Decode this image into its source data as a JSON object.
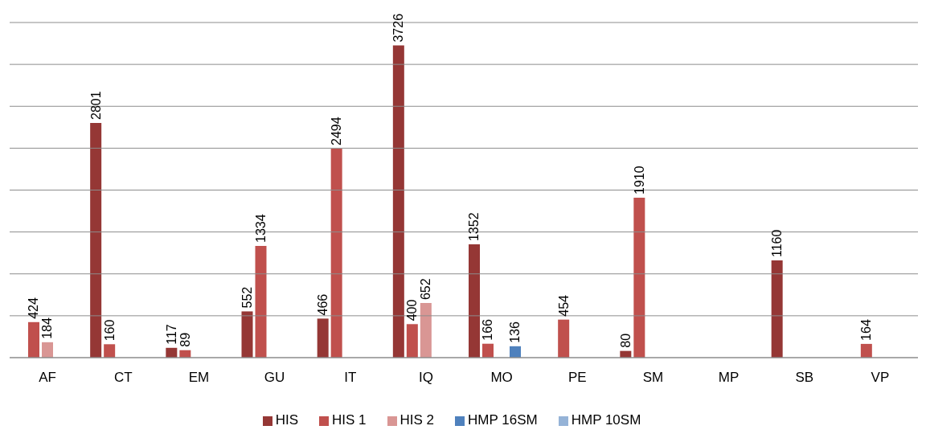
{
  "chart_data": {
    "type": "bar",
    "categories": [
      "AF",
      "CT",
      "EM",
      "GU",
      "IT",
      "IQ",
      "MO",
      "PE",
      "SM",
      "MP",
      "SB",
      "VP"
    ],
    "series": [
      {
        "name": "HIS",
        "color": "#953735",
        "values": [
          null,
          2801,
          117,
          552,
          466,
          3726,
          1352,
          null,
          80,
          null,
          1160,
          null
        ]
      },
      {
        "name": "HIS 1",
        "color": "#c0504d",
        "values": [
          424,
          160,
          89,
          1334,
          2494,
          400,
          166,
          454,
          1910,
          null,
          null,
          164
        ]
      },
      {
        "name": "HIS 2",
        "color": "#d99694",
        "values": [
          184,
          null,
          null,
          null,
          null,
          652,
          null,
          null,
          null,
          null,
          null,
          null
        ]
      },
      {
        "name": "HMP 16SM",
        "color": "#4f81bd",
        "values": [
          null,
          null,
          null,
          null,
          null,
          null,
          136,
          null,
          null,
          null,
          null,
          null
        ]
      },
      {
        "name": "HMP 10SM",
        "color": "#95b3d7",
        "values": [
          null,
          null,
          null,
          null,
          null,
          null,
          null,
          null,
          null,
          null,
          null,
          null
        ]
      }
    ],
    "ylim": [
      0,
      4000
    ],
    "yticks": [
      {
        "value": 0,
        "label": null
      },
      {
        "value": 500,
        "label": null
      },
      {
        "value": 1000,
        "label": null
      },
      {
        "value": 1500,
        "label": null
      },
      {
        "value": 2000,
        "label": null
      },
      {
        "value": 2500,
        "label": null
      },
      {
        "value": 3000,
        "label": null
      },
      {
        "value": 3500,
        "label": null
      },
      {
        "value": 4000,
        "label": null
      }
    ],
    "tick_labels": "x",
    "grid": "y",
    "legend": "bottom",
    "data_labels": true
  }
}
